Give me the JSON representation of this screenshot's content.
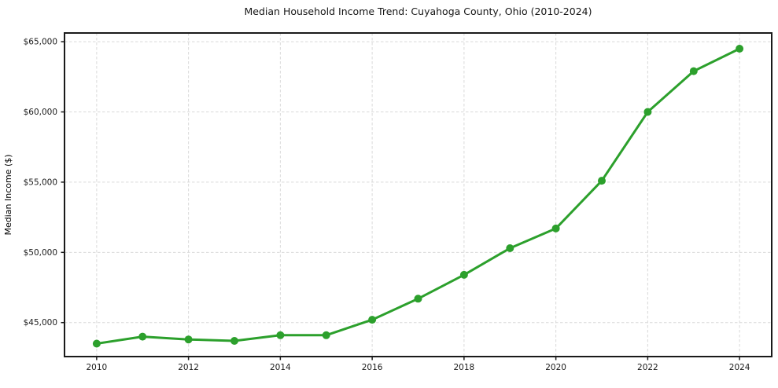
{
  "chart": {
    "title": "Median Household Income Trend: Cuyahoga County, Ohio (2010-2024)"
  },
  "chart_data": {
    "type": "line",
    "title": "Median Household Income Trend: Cuyahoga County, Ohio (2010-2024)",
    "xlabel": "",
    "ylabel": "Median Income ($)",
    "x": [
      2010,
      2011,
      2012,
      2013,
      2014,
      2015,
      2016,
      2017,
      2018,
      2019,
      2020,
      2021,
      2022,
      2023,
      2024
    ],
    "values": [
      43500,
      44000,
      43800,
      43700,
      44100,
      44100,
      45200,
      46700,
      48400,
      50300,
      51700,
      55100,
      60000,
      62900,
      64500
    ],
    "series_name": "Median Household Income",
    "xticks": [
      2010,
      2012,
      2014,
      2016,
      2018,
      2020,
      2022,
      2024
    ],
    "xtick_labels": [
      "2010",
      "2012",
      "2014",
      "2016",
      "2018",
      "2020",
      "2022",
      "2024"
    ],
    "yticks": [
      45000,
      50000,
      55000,
      60000,
      65000
    ],
    "ytick_labels": [
      "$45,000",
      "$50,000",
      "$55,000",
      "$60,000",
      "$65,000"
    ],
    "xlim": [
      2009.3,
      2024.7
    ],
    "ylim": [
      42580,
      65620
    ],
    "grid": true,
    "grid_style": "dashed",
    "legend": "none",
    "marker": "circle",
    "colors": {
      "line": "#2ca02c",
      "marker": "#2ca02c",
      "grid": "#d9d9d9",
      "axis": "#1a1a1a",
      "text": "#1a1a1a"
    }
  }
}
